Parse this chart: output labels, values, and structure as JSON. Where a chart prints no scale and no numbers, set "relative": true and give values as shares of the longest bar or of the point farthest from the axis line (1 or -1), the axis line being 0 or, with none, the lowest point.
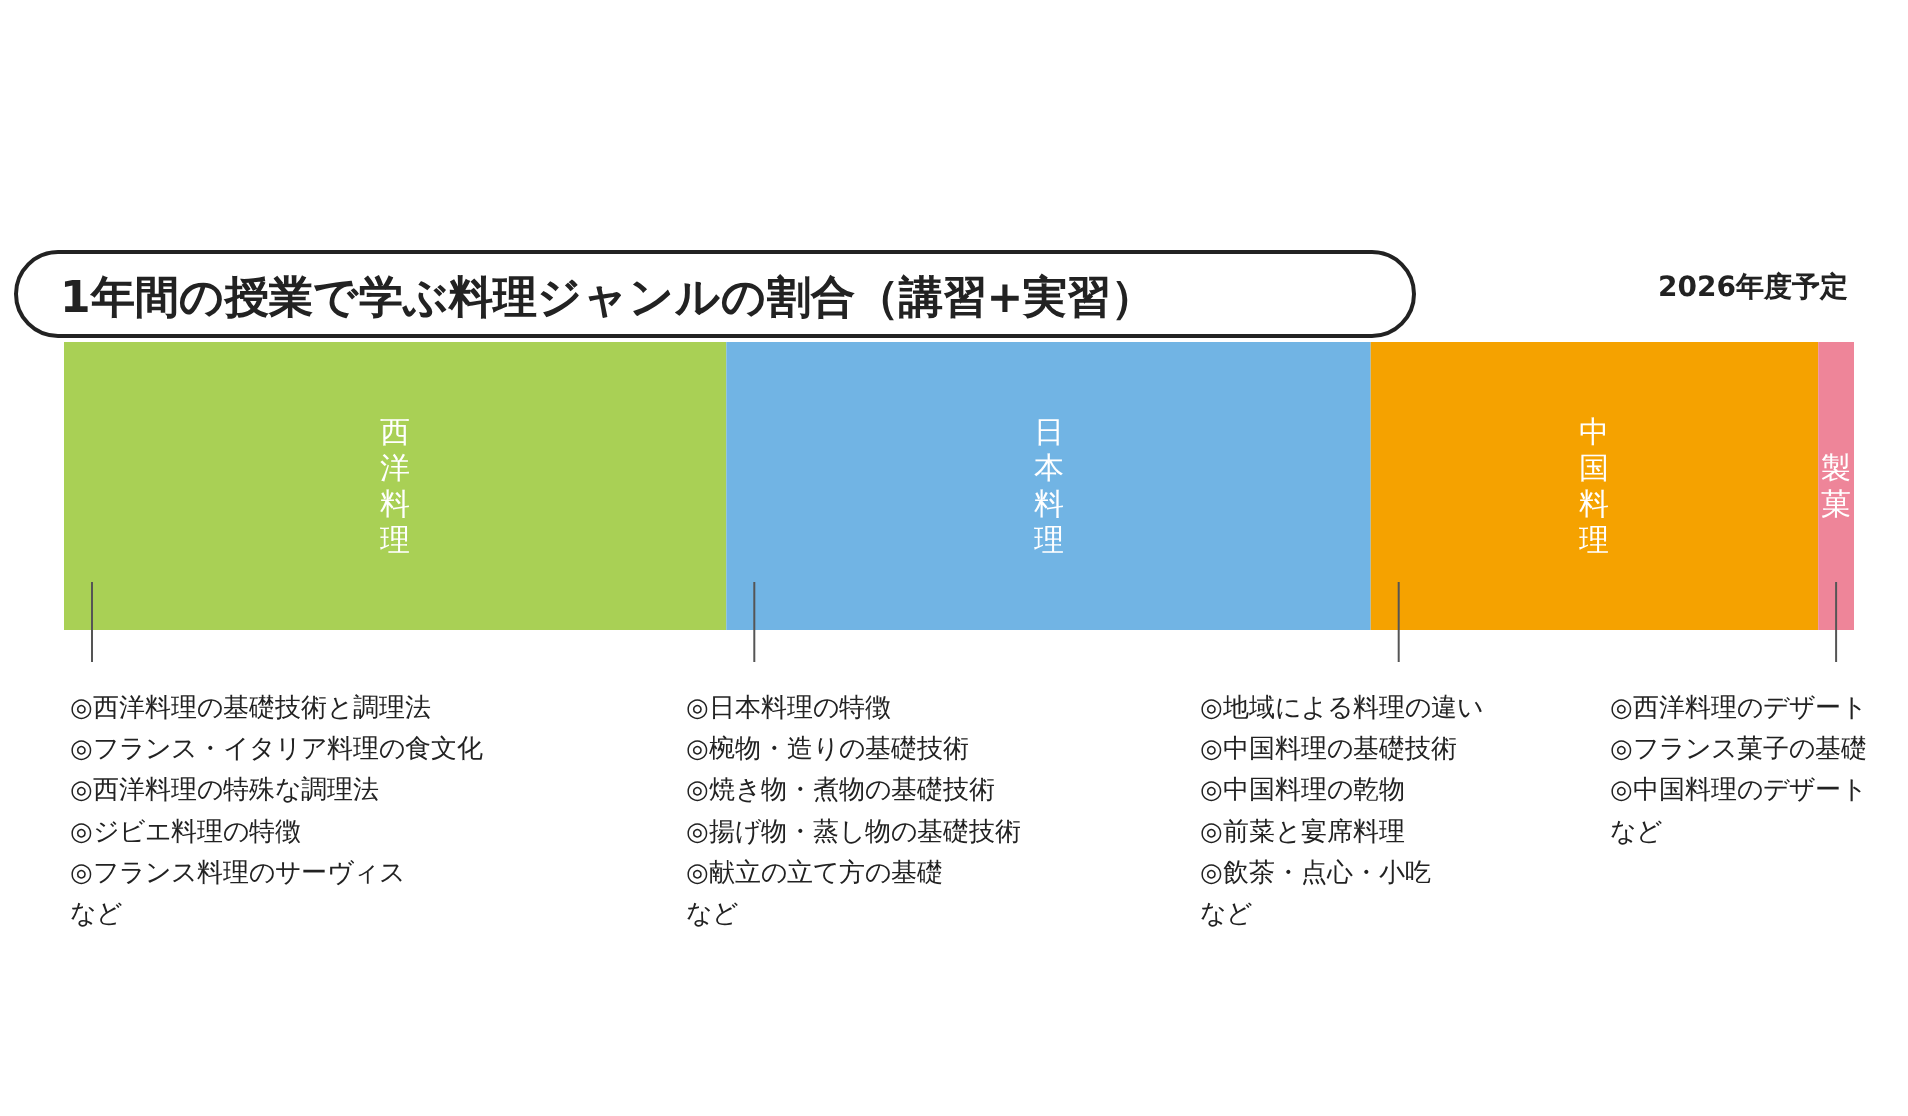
{
  "chart_data": {
    "type": "bar",
    "title": "1年間の授業で学ぶ料理ジャンルの割合（講習+実習）",
    "subtitle": "2026年度予定",
    "categories": [
      null
    ],
    "orientation": "horizontal",
    "stacked": true,
    "relative": true,
    "series": [
      {
        "name": "西洋料理",
        "color": "#a9d055",
        "values": [
          0.37
        ]
      },
      {
        "name": "日本料理",
        "color": "#71b4e4",
        "values": [
          0.36
        ]
      },
      {
        "name": "中国料理",
        "color": "#f5a200",
        "values": [
          0.25
        ]
      },
      {
        "name": "製菓",
        "color": "#ee8599",
        "values": [
          0.02
        ]
      }
    ],
    "annotations": [
      "◎西洋料理の基礎技術と調理法",
      "◎フランス・イタリア料理の食文化",
      "◎西洋料理の特殊な調理法",
      "◎ジビエ料理の特徴",
      "◎フランス料理のサーヴィス",
      "など",
      "◎日本料理の特徴",
      "◎椀物・造りの基礎技術",
      "◎焼き物・煮物の基礎技術",
      "◎揚げ物・蒸し物の基礎技術",
      "◎献立の立て方の基礎",
      "など",
      "◎地域による料理の違い",
      "◎中国料理の基礎技術",
      "◎中国料理の乾物",
      "◎前菜と宴席料理",
      "◎飲茶・点心・小吃",
      "など",
      "◎西洋料理のデザート",
      "◎フランス菓子の基礎",
      "◎中国料理のデザート",
      "など"
    ]
  }
}
